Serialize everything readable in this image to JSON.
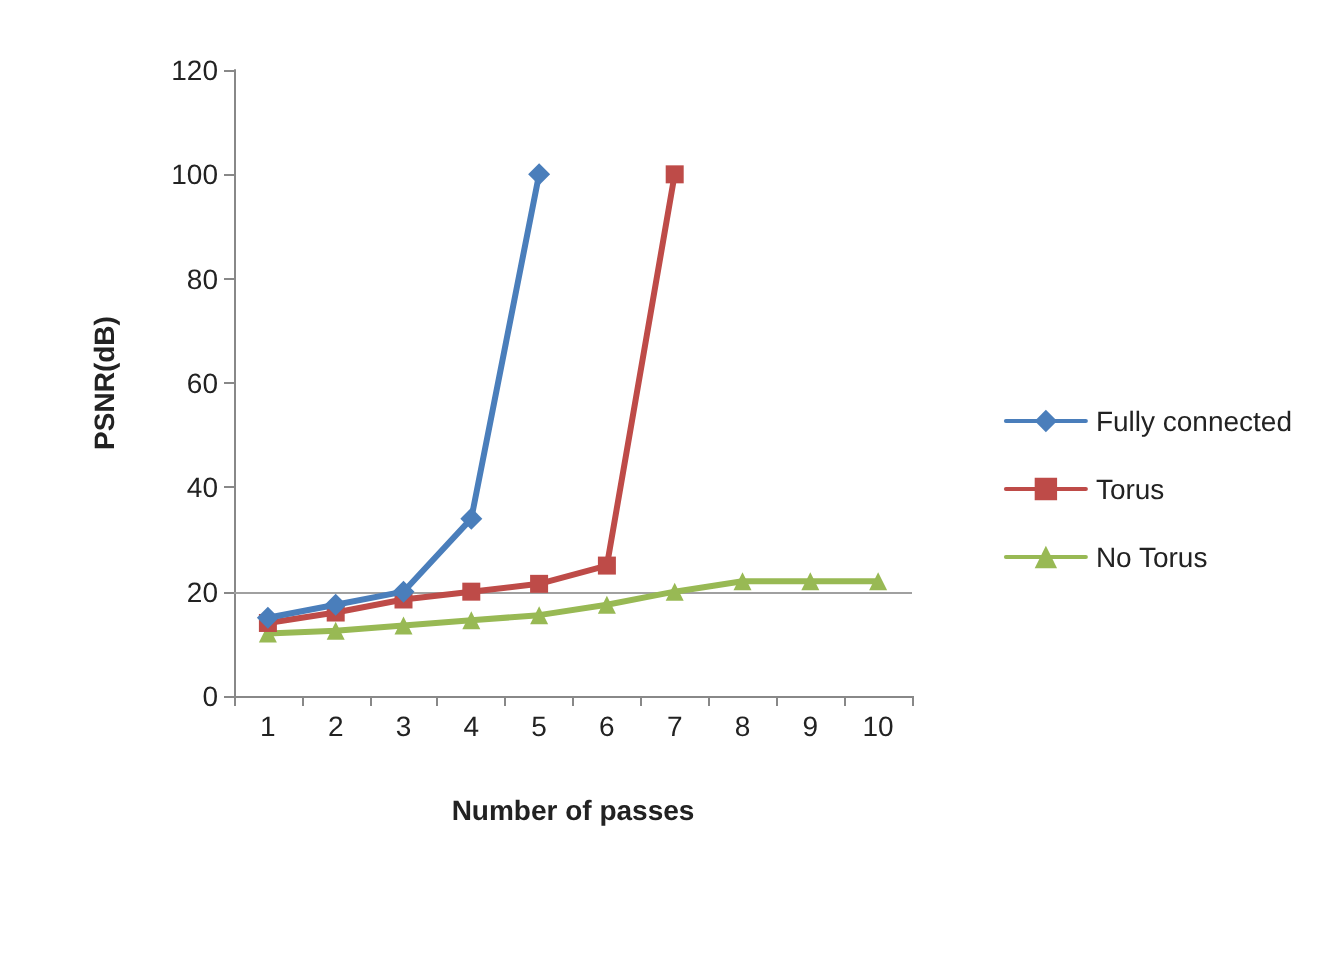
{
  "chart_data": {
    "type": "line",
    "xlabel": "Number of passes",
    "ylabel": "PSNR(dB)",
    "categories": [
      "1",
      "2",
      "3",
      "4",
      "5",
      "6",
      "7",
      "8",
      "9",
      "10"
    ],
    "series": [
      {
        "name": "Fully connected",
        "color": "#4a7ebb",
        "marker": "diamond",
        "values": [
          15,
          17.5,
          20,
          34,
          100,
          null,
          null,
          null,
          null,
          null
        ]
      },
      {
        "name": "Torus",
        "color": "#be4b48",
        "marker": "square",
        "values": [
          14,
          16,
          18.5,
          20,
          21.5,
          25,
          100,
          null,
          null,
          null
        ]
      },
      {
        "name": "No Torus",
        "color": "#98b954",
        "marker": "triangle",
        "values": [
          12,
          12.5,
          13.5,
          14.5,
          15.5,
          17.5,
          20,
          22,
          22,
          22
        ]
      }
    ],
    "ylim": [
      0,
      120
    ],
    "yticks": [
      0,
      20,
      40,
      60,
      80,
      100,
      120
    ],
    "grid": false,
    "legend": "right",
    "line_style": "solid",
    "ref_lines": [
      {
        "axis": "y",
        "value": 20,
        "color": "#a0a0a0"
      }
    ]
  }
}
